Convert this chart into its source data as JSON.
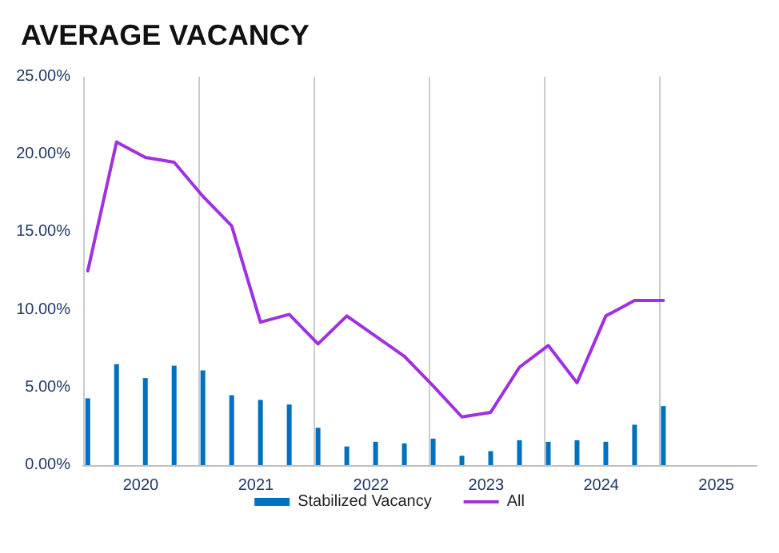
{
  "chart_data": {
    "type": "bar",
    "title": "AVERAGE VACANCY",
    "x": [
      2020.04,
      2020.29,
      2020.54,
      2020.79,
      2021.04,
      2021.29,
      2021.54,
      2021.79,
      2022.04,
      2022.29,
      2022.54,
      2022.79,
      2023.04,
      2023.29,
      2023.54,
      2023.79,
      2024.04,
      2024.29,
      2024.54,
      2024.79,
      2025.04
    ],
    "series": [
      {
        "name": "Stabilized Vacancy",
        "color": "#0070c0",
        "values": [
          4.3,
          6.5,
          5.6,
          6.4,
          6.1,
          4.5,
          4.2,
          3.9,
          2.4,
          1.2,
          1.5,
          1.4,
          1.7,
          0.6,
          0.9,
          1.6,
          1.5,
          1.6,
          1.5,
          2.6,
          3.8
        ]
      },
      {
        "name": "All",
        "type": "line",
        "color": "#a030e0",
        "values": [
          12.5,
          20.8,
          19.8,
          19.5,
          17.3,
          15.4,
          9.2,
          9.7,
          7.8,
          9.6,
          8.3,
          7.0,
          5.1,
          3.1,
          3.4,
          6.3,
          7.7,
          5.3,
          9.6,
          10.6,
          10.6
        ]
      }
    ],
    "xlim": [
      2020,
      2025.85
    ],
    "xticks": [
      {
        "value": 2020,
        "label": null
      },
      {
        "value": 2020.5,
        "label": "2020"
      },
      {
        "value": 2021,
        "label": null
      },
      {
        "value": 2021.5,
        "label": "2021"
      },
      {
        "value": 2022,
        "label": null
      },
      {
        "value": 2022.5,
        "label": "2022"
      },
      {
        "value": 2023,
        "label": null
      },
      {
        "value": 2023.5,
        "label": "2023"
      },
      {
        "value": 2024,
        "label": null
      },
      {
        "value": 2024.5,
        "label": "2024"
      },
      {
        "value": 2025,
        "label": null
      },
      {
        "value": 2025.5,
        "label": "2025"
      }
    ],
    "ylim": [
      0,
      25
    ],
    "yticks": [
      {
        "value": 0,
        "label": "0.00%"
      },
      {
        "value": 5,
        "label": "5.00%"
      },
      {
        "value": 10,
        "label": "10.00%"
      },
      {
        "value": 15,
        "label": "15.00%"
      },
      {
        "value": 20,
        "label": "20.00%"
      },
      {
        "value": 25,
        "label": "25.00%"
      }
    ],
    "grid": "x",
    "legend": "bottom",
    "marker": "none",
    "line_style": "solid"
  }
}
